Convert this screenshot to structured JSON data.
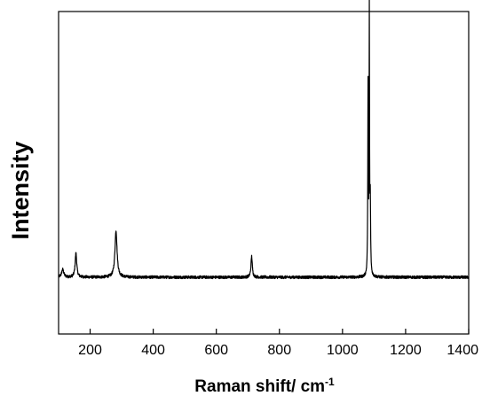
{
  "chart_data": {
    "type": "line",
    "title": "",
    "xlabel": "Raman shift/ cm",
    "xlabel_superscript": "-1",
    "ylabel": "Intensity",
    "xlim": [
      100,
      1400
    ],
    "ylim": [
      0,
      100
    ],
    "y_ticks_shown": false,
    "x_ticks": [
      200,
      400,
      600,
      800,
      1000,
      1200,
      1400
    ],
    "x_tick_labels": [
      "200",
      "400",
      "600",
      "800",
      "1000",
      "1200",
      "1400"
    ],
    "grid": false,
    "legend": "none",
    "line_color": "#000000",
    "baseline": 17.6,
    "series": [
      {
        "peaks": [
          {
            "x": 113,
            "height": 2.4,
            "width": 4
          },
          {
            "x": 155,
            "height": 7.5,
            "width": 3
          },
          {
            "x": 282,
            "height": 14.5,
            "width": 4
          },
          {
            "x": 712,
            "height": 6.5,
            "width": 2.5
          },
          {
            "x": 1081,
            "height": 59,
            "width": 1
          },
          {
            "x": 1085,
            "height": 81,
            "width": 0.8
          },
          {
            "x": 1088,
            "height": 22,
            "width": 1.2
          }
        ]
      }
    ]
  }
}
